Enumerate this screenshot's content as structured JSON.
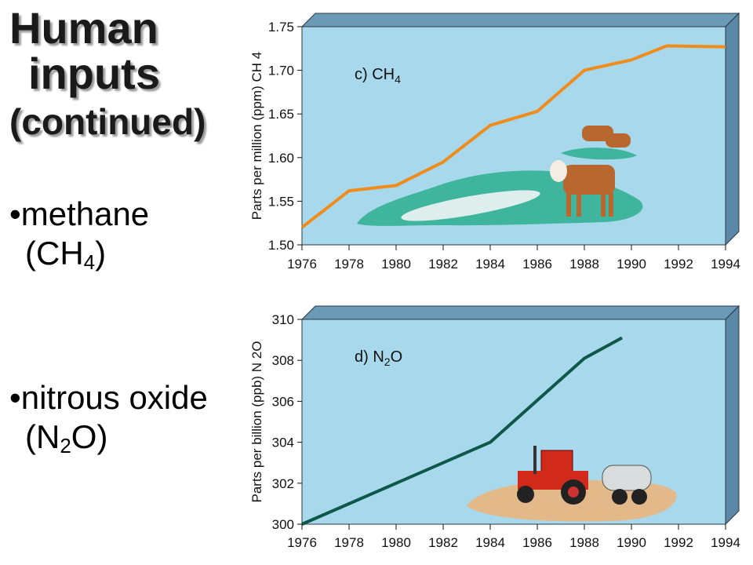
{
  "slide": {
    "title_line1": "Human",
    "title_line2": "inputs",
    "title_line3": "(continued)",
    "bullets": [
      {
        "text": "methane",
        "formula_pre": "(CH",
        "formula_sub": "4",
        "formula_post": ")"
      },
      {
        "text": "nitrous oxide",
        "formula_pre": "(N",
        "formula_sub": "2",
        "formula_post": "O)"
      }
    ]
  },
  "colors": {
    "panel_fill": "#a8d8ec",
    "panel_top": "#6a9ab6",
    "panel_side": "#5a88a6",
    "ch4_line": "#f08c1c",
    "n2o_line": "#0d5848",
    "field": "#3fb59e",
    "soil": "#e3b98a",
    "cow_body": "#b8672f",
    "tractor": "#d12a1a"
  },
  "chart_data": [
    {
      "type": "line",
      "panel_label_pre": "c) CH",
      "panel_label_sub": "4",
      "ylabel": "Parts per million (ppm) CH 4",
      "x": [
        1976,
        1978,
        1980,
        1982,
        1984,
        1986,
        1988,
        1990,
        1991.5,
        1994
      ],
      "y": [
        1.52,
        1.562,
        1.568,
        1.595,
        1.637,
        1.653,
        1.7,
        1.712,
        1.728,
        1.727
      ],
      "xlim": [
        1976,
        1994
      ],
      "ylim": [
        1.5,
        1.75
      ],
      "xticks": [
        "1976",
        "1978",
        "1980",
        "1982",
        "1984",
        "1986",
        "1988",
        "1990",
        "1992",
        "1994"
      ],
      "yticks": [
        "1.50",
        "1.55",
        "1.60",
        "1.65",
        "1.70",
        "1.75"
      ],
      "ytick_values": [
        1.5,
        1.55,
        1.6,
        1.65,
        1.7,
        1.75
      ],
      "grid": false,
      "icon": "cattle-illustration"
    },
    {
      "type": "line",
      "panel_label_pre": "d) N",
      "panel_label_sub": "2",
      "panel_label_post": "O",
      "ylabel": "Parts per billion (ppb) N 2O",
      "x": [
        1976,
        1984,
        1988,
        1989.6
      ],
      "y": [
        300,
        304,
        308.1,
        309.1
      ],
      "xlim": [
        1976,
        1994
      ],
      "ylim": [
        300,
        310
      ],
      "xticks": [
        "1976",
        "1978",
        "1980",
        "1982",
        "1984",
        "1986",
        "1988",
        "1990",
        "1992",
        "1994"
      ],
      "yticks": [
        "300",
        "302",
        "304",
        "306",
        "308",
        "310"
      ],
      "ytick_values": [
        300,
        302,
        304,
        306,
        308,
        310
      ],
      "grid": false,
      "icon": "tractor-illustration"
    }
  ]
}
